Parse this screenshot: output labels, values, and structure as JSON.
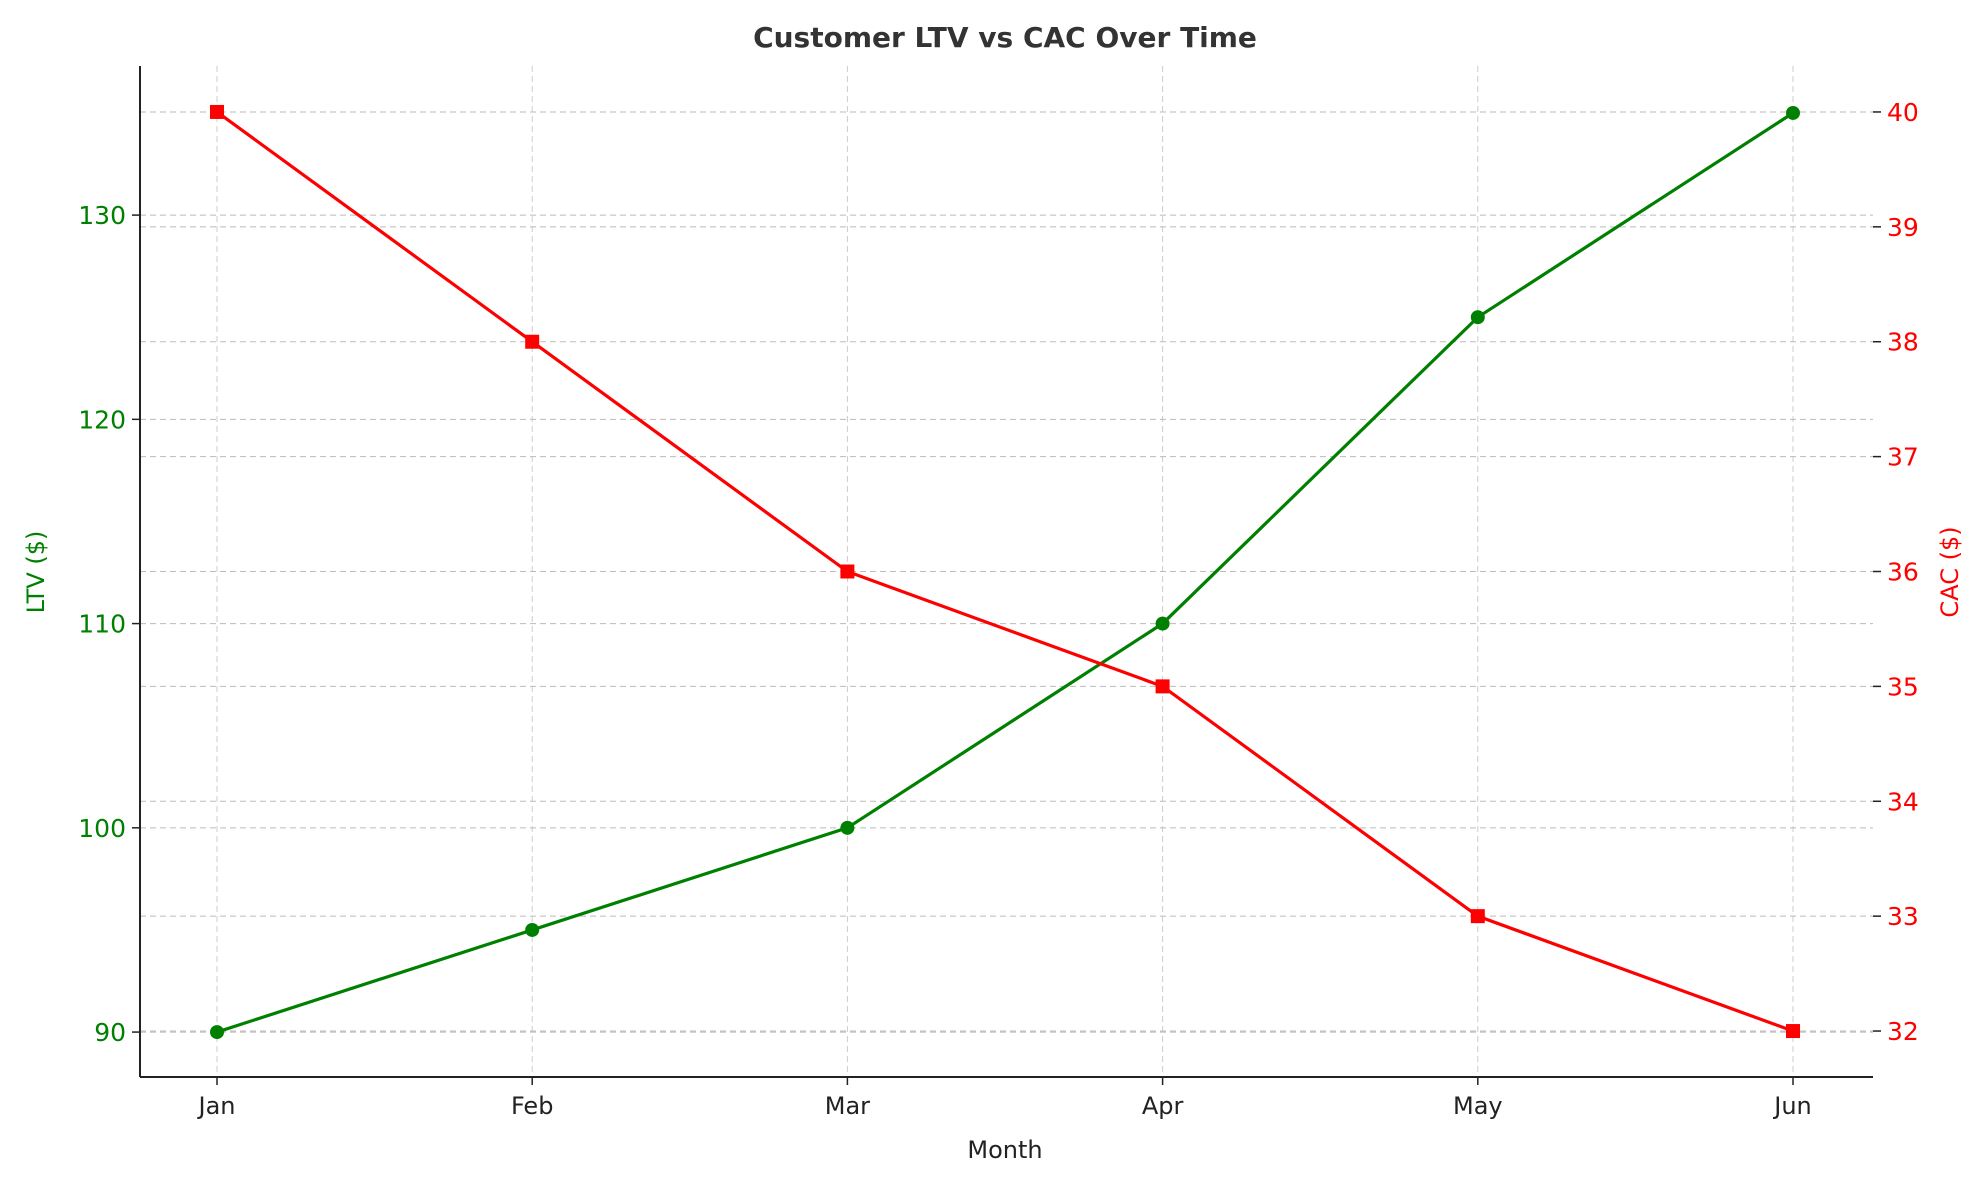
{
  "chart_data": {
    "type": "line",
    "title": "Customer LTV vs CAC Over Time",
    "xlabel": "Month",
    "categories": [
      "Jan",
      "Feb",
      "Mar",
      "Apr",
      "May",
      "Jun"
    ],
    "series": [
      {
        "axis": "left",
        "values": [
          90,
          95,
          100,
          110,
          125,
          135
        ],
        "color": "#008000",
        "marker": "circle"
      },
      {
        "axis": "right",
        "values": [
          40,
          38,
          36,
          35,
          33,
          32
        ],
        "color": "#ff0000",
        "marker": "square"
      }
    ],
    "y_left": {
      "label": "LTV ($)",
      "ticks": [
        90,
        100,
        110,
        120,
        130
      ],
      "ylim": [
        87.8,
        137.3
      ],
      "color": "#008000"
    },
    "y_right": {
      "label": "CAC ($)",
      "ticks": [
        32,
        33,
        34,
        35,
        36,
        37,
        38,
        39,
        40
      ],
      "ylim": [
        31.6,
        40.4
      ],
      "color": "#ff0000"
    },
    "grid": true,
    "legend": "none"
  }
}
